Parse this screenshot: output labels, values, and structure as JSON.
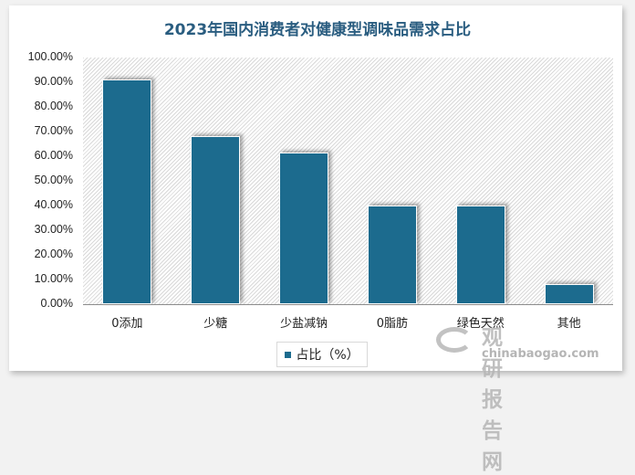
{
  "title": "2023年国内消费者对健康型调味品需求占比",
  "legend": {
    "label": "占比（%）",
    "color": "#1c6b8e"
  },
  "watermark": {
    "cn": "观研报告网",
    "en": "chinabaogao.com"
  },
  "y_ticks": [
    "100.00%",
    "90.00%",
    "80.00%",
    "70.00%",
    "60.00%",
    "50.00%",
    "40.00%",
    "30.00%",
    "20.00%",
    "10.00%",
    "0.00%"
  ],
  "categories": [
    "0添加",
    "少糖",
    "少盐减钠",
    "0脂肪",
    "绿色天然",
    "其他"
  ],
  "chart_data": {
    "type": "bar",
    "title": "2023年国内消费者对健康型调味品需求占比",
    "xlabel": "",
    "ylabel": "",
    "categories": [
      "0添加",
      "少糖",
      "少盐减钠",
      "0脂肪",
      "绿色天然",
      "其他"
    ],
    "series": [
      {
        "name": "占比（%）",
        "values": [
          91,
          68,
          61.5,
          40,
          40,
          8
        ]
      }
    ],
    "ylim": [
      0,
      100
    ],
    "y_tick_format": "0.00%",
    "grid": false,
    "legend_position": "bottom",
    "bar_color": "#1c6b8e"
  }
}
